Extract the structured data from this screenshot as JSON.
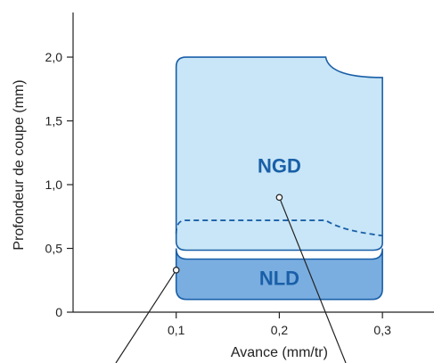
{
  "chart_data": {
    "type": "area",
    "title": "",
    "xlabel": "Avance (mm/tr)",
    "ylabel": "Profondeur de coupe (mm)",
    "xlim": [
      0,
      0.35
    ],
    "ylim": [
      0,
      2.35
    ],
    "x_ticks": [
      0.1,
      0.2,
      0.3
    ],
    "x_tick_labels": [
      "0,1",
      "0,2",
      "0,3"
    ],
    "y_ticks": [
      0,
      0.5,
      1.0,
      1.5,
      2.0
    ],
    "y_tick_labels": [
      "0",
      "0,5",
      "1,0",
      "1,5",
      "2,0"
    ],
    "grid": false,
    "colors": {
      "axis": "#222222",
      "ngd_fill": "#c8e6f7",
      "nld_fill": "#7aaee0",
      "region_stroke": "#1a5fa8",
      "label_text": "#1a5fa8",
      "dashed": "#1a5fa8",
      "pointer": "#222222"
    },
    "regions": [
      {
        "name": "NGD",
        "feed_range": [
          0.1,
          0.3
        ],
        "depth_range": [
          0.5,
          2.0
        ],
        "label_at": [
          0.2,
          1.15
        ],
        "pointer_dot": [
          0.2,
          0.9
        ]
      },
      {
        "name": "NLD",
        "feed_range": [
          0.1,
          0.3
        ],
        "depth_range": [
          0.1,
          0.5
        ],
        "label_at": [
          0.2,
          0.27
        ],
        "pointer_dot": [
          0.1,
          0.33
        ]
      }
    ],
    "dashed_boundary": [
      [
        0.1,
        0.72
      ],
      [
        0.245,
        0.72
      ],
      [
        0.255,
        0.67
      ],
      [
        0.27,
        0.63
      ],
      [
        0.3,
        0.6
      ]
    ]
  }
}
